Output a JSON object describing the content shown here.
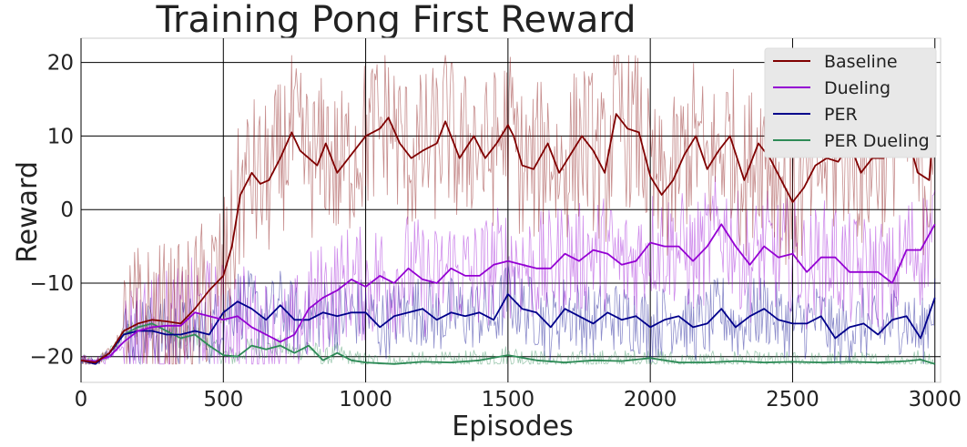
{
  "chart_data": {
    "type": "line",
    "title": "Training Pong First Reward",
    "xlabel": "Episodes",
    "ylabel": "Reward",
    "xlim": [
      0,
      3020
    ],
    "ylim": [
      -23.5,
      23.3
    ],
    "xticks": [
      0,
      500,
      1000,
      1500,
      2000,
      2500,
      3000
    ],
    "xtick_labels": [
      "0",
      "500",
      "1000",
      "1500",
      "2000",
      "2500",
      "3000"
    ],
    "yticks": [
      -20,
      -10,
      0,
      10,
      20
    ],
    "ytick_labels": [
      "−20",
      "−10",
      "0",
      "10",
      "20"
    ],
    "grid": true,
    "legend_position": "top-right",
    "raw_episode_rewards_shown": true,
    "series": [
      {
        "name": "Baseline",
        "color": "#800000",
        "x": [
          0,
          50,
          100,
          150,
          200,
          250,
          300,
          350,
          400,
          450,
          500,
          530,
          560,
          600,
          630,
          660,
          700,
          740,
          770,
          800,
          830,
          860,
          900,
          950,
          1000,
          1050,
          1080,
          1120,
          1160,
          1200,
          1250,
          1280,
          1330,
          1380,
          1420,
          1460,
          1500,
          1520,
          1550,
          1590,
          1640,
          1680,
          1720,
          1760,
          1800,
          1840,
          1880,
          1920,
          1960,
          2000,
          2040,
          2080,
          2120,
          2160,
          2200,
          2240,
          2280,
          2330,
          2380,
          2420,
          2460,
          2500,
          2540,
          2580,
          2620,
          2660,
          2700,
          2740,
          2780,
          2820,
          2860,
          2900,
          2940,
          2980,
          3000
        ],
        "values": [
          -20.5,
          -20.8,
          -19.5,
          -16.5,
          -15.5,
          -15,
          -15.2,
          -15.5,
          -13.5,
          -11,
          -9,
          -5,
          2,
          5,
          3.5,
          4,
          7,
          10.5,
          8,
          7,
          6,
          9,
          5,
          7.5,
          10,
          11,
          12.5,
          9,
          7,
          8,
          9,
          12,
          7,
          10,
          7,
          9,
          11.5,
          10,
          6,
          5.5,
          9,
          5,
          7.5,
          10,
          8,
          5,
          13,
          11,
          10.5,
          4.5,
          2,
          4,
          7.5,
          10,
          5.5,
          8,
          10,
          4,
          9,
          7,
          4,
          1,
          3,
          6,
          7,
          6.5,
          9,
          5,
          7,
          7,
          10,
          10.5,
          5,
          4,
          14
        ]
      },
      {
        "name": "Dueling",
        "color": "#9400d3",
        "x": [
          0,
          50,
          100,
          150,
          200,
          250,
          300,
          350,
          400,
          450,
          500,
          550,
          600,
          650,
          700,
          750,
          800,
          850,
          900,
          950,
          1000,
          1050,
          1100,
          1150,
          1200,
          1250,
          1300,
          1350,
          1400,
          1450,
          1500,
          1550,
          1600,
          1650,
          1700,
          1750,
          1800,
          1850,
          1900,
          1950,
          2000,
          2050,
          2100,
          2150,
          2200,
          2250,
          2300,
          2350,
          2400,
          2450,
          2500,
          2550,
          2600,
          2650,
          2700,
          2750,
          2800,
          2850,
          2900,
          2950,
          3000
        ],
        "values": [
          -20.5,
          -20.6,
          -20,
          -18,
          -16.5,
          -16,
          -15.8,
          -15.8,
          -14,
          -14.5,
          -15,
          -14.5,
          -16,
          -17,
          -18,
          -17,
          -13.5,
          -12,
          -11,
          -9.5,
          -10.5,
          -9,
          -10,
          -8,
          -9.5,
          -10,
          -8,
          -9,
          -9,
          -7.5,
          -7,
          -7.5,
          -8,
          -8,
          -6,
          -7,
          -5.5,
          -6,
          -7.5,
          -7,
          -4.5,
          -5,
          -5,
          -7,
          -5,
          -2,
          -5,
          -7.5,
          -5,
          -6.5,
          -6,
          -8.5,
          -6.5,
          -6.5,
          -8.5,
          -8.5,
          -8.5,
          -10,
          -5.5,
          -5.5,
          -2
        ]
      },
      {
        "name": "PER",
        "color": "#00008b",
        "x": [
          0,
          50,
          100,
          150,
          200,
          250,
          300,
          350,
          400,
          450,
          500,
          550,
          600,
          650,
          700,
          750,
          800,
          850,
          900,
          950,
          1000,
          1050,
          1100,
          1150,
          1200,
          1250,
          1300,
          1350,
          1400,
          1450,
          1500,
          1550,
          1600,
          1650,
          1700,
          1750,
          1800,
          1850,
          1900,
          1950,
          2000,
          2050,
          2100,
          2150,
          2200,
          2250,
          2300,
          2350,
          2400,
          2450,
          2500,
          2550,
          2600,
          2650,
          2700,
          2750,
          2800,
          2850,
          2900,
          2950,
          3000
        ],
        "values": [
          -20.5,
          -21,
          -19.5,
          -17,
          -16.5,
          -16.5,
          -17,
          -17,
          -16.5,
          -17,
          -14,
          -12.5,
          -13.5,
          -15,
          -13,
          -15,
          -15,
          -14,
          -14.5,
          -14,
          -14,
          -16,
          -14.5,
          -14,
          -13.5,
          -15,
          -14,
          -14.5,
          -14,
          -15,
          -11.5,
          -13.5,
          -14,
          -16,
          -13.5,
          -14.5,
          -15.5,
          -14,
          -15,
          -14.5,
          -16,
          -15,
          -14.5,
          -16,
          -15.5,
          -13.5,
          -16,
          -14.5,
          -13.5,
          -15,
          -15.5,
          -15.5,
          -14.5,
          -17.5,
          -16,
          -15.5,
          -17,
          -15,
          -14.5,
          -17.5,
          -12
        ]
      },
      {
        "name": "PER Dueling",
        "color": "#2e8b57",
        "x": [
          0,
          50,
          100,
          150,
          200,
          250,
          300,
          350,
          400,
          450,
          500,
          550,
          600,
          650,
          700,
          750,
          800,
          850,
          900,
          950,
          1000,
          1100,
          1200,
          1300,
          1400,
          1500,
          1600,
          1700,
          1800,
          1900,
          2000,
          2100,
          2200,
          2300,
          2400,
          2500,
          2600,
          2700,
          2800,
          2900,
          2950,
          3000
        ],
        "values": [
          -20.5,
          -20.8,
          -19.5,
          -17,
          -16,
          -15.5,
          -16.5,
          -17.5,
          -17,
          -18.5,
          -19.8,
          -20,
          -18.5,
          -19,
          -18.5,
          -19.5,
          -18.5,
          -20.5,
          -19.5,
          -20.5,
          -20.8,
          -21,
          -20.7,
          -20.8,
          -20.5,
          -19.8,
          -20.5,
          -20.8,
          -20.5,
          -20.6,
          -20.2,
          -20.8,
          -20.8,
          -20.6,
          -20.8,
          -20.7,
          -20.8,
          -20.7,
          -20.8,
          -20.6,
          -20.4,
          -21
        ]
      }
    ]
  }
}
